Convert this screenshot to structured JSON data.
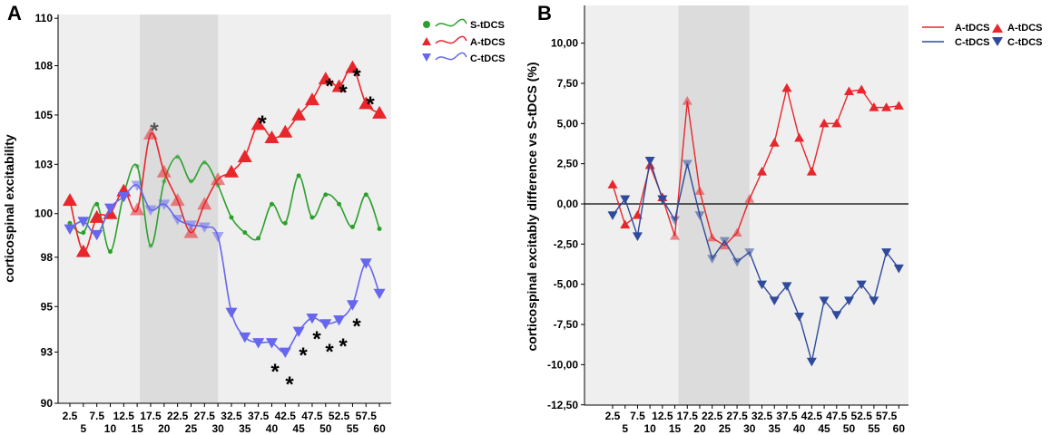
{
  "colors": {
    "sham": "#2ca02c",
    "anodal": "#e8262c",
    "cathodal": "#6666ee",
    "cathodal_diff": "#2f4a9a",
    "panel_bg": "#efefef",
    "shade": "#dcdcdc"
  },
  "chart_data": [
    {
      "type": "line",
      "panel_label": "A",
      "ylabel": "corticospinal excitability",
      "xlabel": "",
      "x_ticks_top": [
        "2.5",
        "7.5",
        "12.5",
        "17.5",
        "22.5",
        "27.5",
        "32.5",
        "37.5",
        "42.5",
        "47.5",
        "52.5",
        "57.5"
      ],
      "x_ticks_bottom": [
        "5",
        "10",
        "15",
        "20",
        "25",
        "30",
        "35",
        "40",
        "45",
        "50",
        "55",
        "60"
      ],
      "x": [
        2.5,
        5,
        7.5,
        10,
        12.5,
        15,
        17.5,
        20,
        22.5,
        25,
        27.5,
        30,
        32.5,
        35,
        37.5,
        40,
        42.5,
        45,
        47.5,
        50,
        52.5,
        55,
        57.5,
        60
      ],
      "y_ticks": [
        "90",
        "93",
        "95",
        "98",
        "100",
        "103",
        "105",
        "108",
        "110"
      ],
      "ylim": [
        90,
        110.5
      ],
      "shaded_region": [
        15,
        30
      ],
      "series": [
        {
          "name": "S-tDCS",
          "marker": "circle",
          "values": [
            99.5,
            99,
            100.5,
            98,
            101,
            102.5,
            98.3,
            101.7,
            103,
            101.7,
            102.7,
            101.5,
            99.8,
            99,
            98.7,
            100.5,
            99.5,
            102,
            99.8,
            101,
            100.5,
            99.3,
            101,
            99.2
          ]
        },
        {
          "name": "A-tDCS",
          "marker": "triangle-up",
          "values": [
            100.7,
            98,
            99.8,
            100,
            101.2,
            100.2,
            104.2,
            102.2,
            100.7,
            99,
            100.5,
            101.8,
            102.2,
            103,
            104.7,
            104,
            104.3,
            105.2,
            106,
            107.1,
            106.7,
            107.7,
            105.8,
            105.3
          ]
        },
        {
          "name": "C-tDCS",
          "marker": "triangle-down",
          "values": [
            99.2,
            99.6,
            98.9,
            100.3,
            100.9,
            101.5,
            100.2,
            100.5,
            99.7,
            99.4,
            99.3,
            98.8,
            94.8,
            93.5,
            93.2,
            93.2,
            92.7,
            93.8,
            94.5,
            94.2,
            94.4,
            95.2,
            97.4,
            95.8
          ]
        }
      ],
      "annotations": [
        "*",
        "*",
        "*",
        "*",
        "*",
        "*",
        "*",
        "*",
        "*",
        "*",
        "*",
        "*",
        "*",
        "*",
        "*"
      ]
    },
    {
      "type": "line",
      "panel_label": "B",
      "ylabel": "corticospinal excitably difference vs S-tDCS (%)",
      "xlabel": "",
      "x_ticks_top": [
        "2.5",
        "7.5",
        "12.5",
        "17.5",
        "22.5",
        "27.5",
        "32.5",
        "37.5",
        "42.5",
        "47.5",
        "52.5",
        "57.5"
      ],
      "x_ticks_bottom": [
        "5",
        "10",
        "15",
        "20",
        "25",
        "30",
        "35",
        "40",
        "45",
        "50",
        "55",
        "60"
      ],
      "x": [
        2.5,
        5,
        7.5,
        10,
        12.5,
        15,
        17.5,
        20,
        22.5,
        25,
        27.5,
        30,
        32.5,
        35,
        37.5,
        40,
        42.5,
        45,
        47.5,
        50,
        52.5,
        55,
        57.5,
        60
      ],
      "y_ticks": [
        "10,00",
        "7,50",
        "5,00",
        "2,50",
        "0,00",
        "-2,50",
        "-5,00",
        "-7,50",
        "-10,00",
        "-12,50"
      ],
      "ylim": [
        -12.5,
        12.4
      ],
      "shaded_region": [
        15,
        30
      ],
      "zero_line": 0,
      "series": [
        {
          "name": "A-tDCS",
          "marker": "triangle-up",
          "values": [
            1.2,
            -1.3,
            -0.7,
            2.4,
            0.4,
            -2,
            6.4,
            0.8,
            -2.1,
            -2.6,
            -1.8,
            0.3,
            2,
            3.8,
            7.2,
            4.1,
            2,
            5,
            5,
            7,
            7.1,
            6,
            6,
            6.1
          ]
        },
        {
          "name": "C-tDCS",
          "marker": "triangle-down",
          "values": [
            -0.7,
            0.3,
            -2,
            2.7,
            0.3,
            -1,
            2.5,
            -0.7,
            -3.4,
            -2.3,
            -3.6,
            -3,
            -5,
            -6,
            -5.1,
            -7,
            -9.8,
            -6,
            -6.9,
            -6,
            -5,
            -6,
            -3,
            -4
          ]
        }
      ]
    }
  ]
}
